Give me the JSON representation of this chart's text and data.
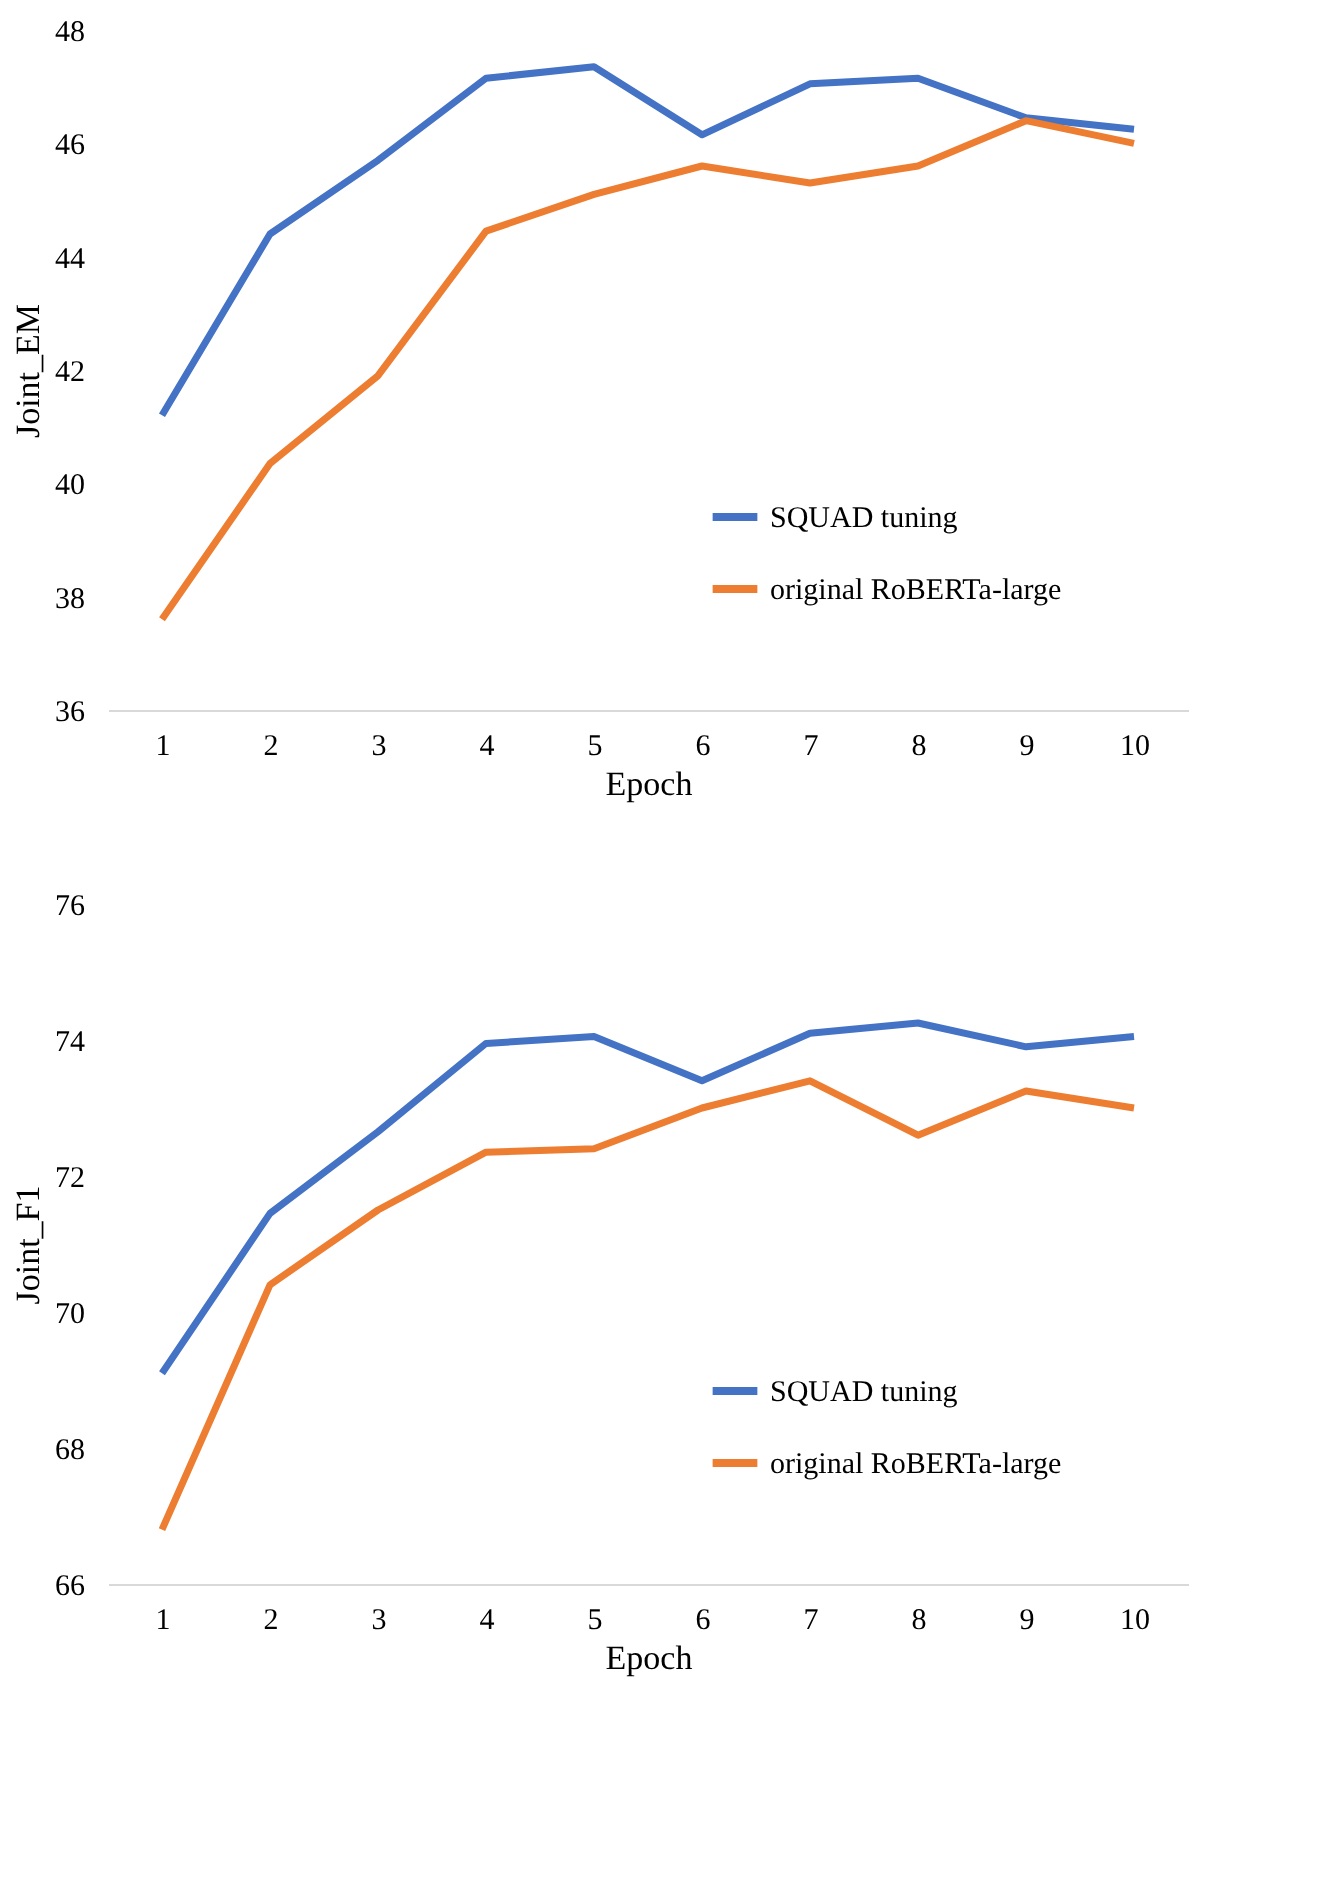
{
  "chart_data": [
    {
      "type": "line",
      "xlabel": "Epoch",
      "ylabel": "Joint_EM",
      "categories": [
        "1",
        "2",
        "3",
        "4",
        "5",
        "6",
        "7",
        "8",
        "9",
        "10"
      ],
      "ylim": [
        36,
        48
      ],
      "yticks": [
        36,
        38,
        40,
        42,
        44,
        46,
        48
      ],
      "grid": false,
      "legend": "bottom right",
      "marker": "none",
      "line_style": "solid",
      "series": [
        {
          "name": "SQUAD tuning",
          "color": "#4472c4",
          "values": [
            41.2,
            44.4,
            45.7,
            47.15,
            47.35,
            46.15,
            47.05,
            47.15,
            46.45,
            46.25
          ]
        },
        {
          "name": "original RoBERTa-large",
          "color": "#ed7d31",
          "values": [
            37.6,
            40.35,
            41.9,
            44.45,
            45.1,
            45.6,
            45.3,
            45.6,
            46.4,
            46.0
          ]
        }
      ]
    },
    {
      "type": "line",
      "xlabel": "Epoch",
      "ylabel": "Joint_F1",
      "categories": [
        "1",
        "2",
        "3",
        "4",
        "5",
        "6",
        "7",
        "8",
        "9",
        "10"
      ],
      "ylim": [
        66,
        76
      ],
      "yticks": [
        66,
        68,
        70,
        72,
        74,
        76
      ],
      "grid": false,
      "legend": "bottom right",
      "marker": "none",
      "line_style": "solid",
      "series": [
        {
          "name": "SQUAD tuning",
          "color": "#4472c4",
          "values": [
            69.1,
            71.45,
            72.65,
            73.95,
            74.05,
            73.4,
            74.1,
            74.25,
            73.9,
            74.05
          ]
        },
        {
          "name": "original RoBERTa-large",
          "color": "#ed7d31",
          "values": [
            66.8,
            70.4,
            71.5,
            72.35,
            72.4,
            73.0,
            73.4,
            72.6,
            73.25,
            73.0
          ]
        }
      ]
    }
  ]
}
